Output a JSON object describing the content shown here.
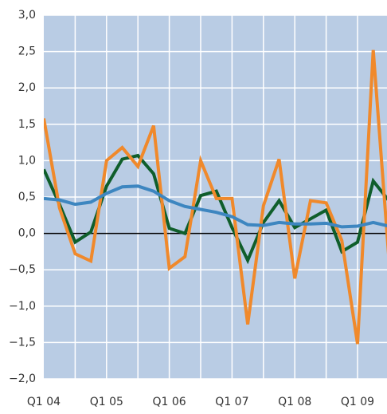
{
  "chart_data": {
    "type": "line",
    "categories": [
      "Q1 04",
      null,
      null,
      null,
      "Q1 05",
      null,
      null,
      null,
      "Q1 06",
      null,
      null,
      null,
      "Q1 07",
      null,
      null,
      null,
      "Q1 08",
      null,
      null,
      null,
      "Q1 09",
      null,
      null
    ],
    "series": [
      {
        "color": "#0f5e2b",
        "values": [
          0.88,
          0.4,
          -0.12,
          0.02,
          0.65,
          1.02,
          1.07,
          0.82,
          0.07,
          0.0,
          0.52,
          0.58,
          0.08,
          -0.37,
          0.15,
          0.45,
          0.08,
          0.2,
          0.32,
          -0.25,
          -0.12,
          0.72,
          0.45
        ]
      },
      {
        "color": "#f0892b",
        "values": [
          1.58,
          0.35,
          -0.28,
          -0.38,
          1.0,
          1.18,
          0.92,
          1.48,
          -0.48,
          -0.32,
          1.0,
          0.48,
          0.48,
          -1.25,
          0.38,
          1.02,
          -0.62,
          0.45,
          0.42,
          -0.1,
          -1.52,
          2.52,
          -0.35
        ]
      },
      {
        "color": "#3d86c0",
        "values": [
          0.48,
          0.46,
          0.4,
          0.43,
          0.55,
          0.64,
          0.65,
          0.58,
          0.45,
          0.37,
          0.33,
          0.29,
          0.23,
          0.12,
          0.11,
          0.15,
          0.13,
          0.13,
          0.14,
          0.09,
          0.1,
          0.15,
          0.1
        ]
      }
    ],
    "ylim": [
      -2,
      3
    ],
    "yticks": [
      {
        "value": 3,
        "label": "3,0"
      },
      {
        "value": 2.5,
        "label": "2,5"
      },
      {
        "value": 2,
        "label": "2,0"
      },
      {
        "value": 1.5,
        "label": "1,5"
      },
      {
        "value": 1,
        "label": "1,0"
      },
      {
        "value": 0.5,
        "label": "0,5"
      },
      {
        "value": 0,
        "label": "0,0"
      },
      {
        "value": -0.5,
        "label": "−0,5"
      },
      {
        "value": -1,
        "label": "−1,0"
      },
      {
        "value": -1.5,
        "label": "−1,5"
      },
      {
        "value": -2,
        "label": "−2,0"
      }
    ],
    "grid": true
  }
}
